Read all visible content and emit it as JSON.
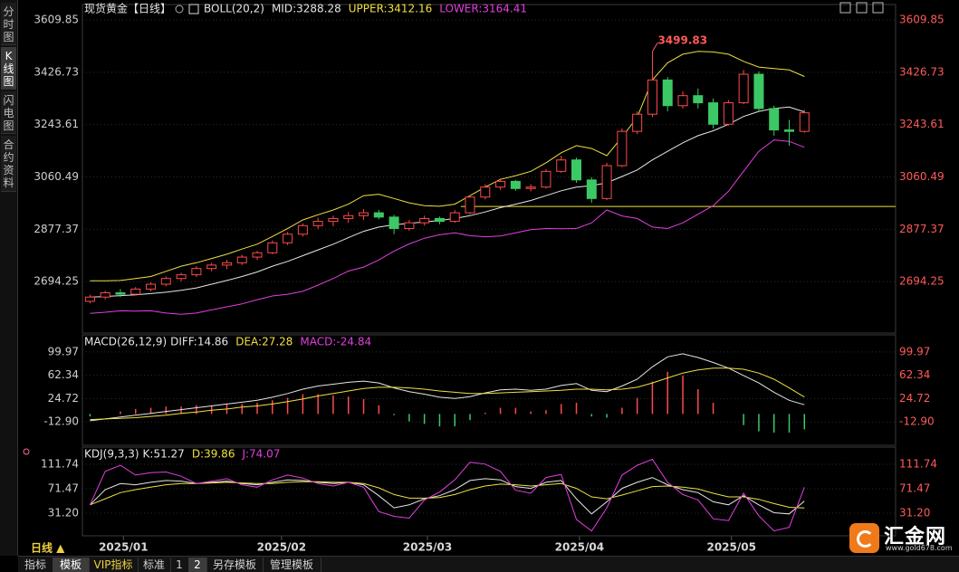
{
  "chart_data": [
    {
      "type": "candlestick",
      "title": "现货黄金【日线】",
      "legend": [
        {
          "text": "BOLL(20,2)",
          "color": "#e6e6e6"
        },
        {
          "text": "MID:3288.28",
          "color": "#e6e6e6"
        },
        {
          "text": "UPPER:3412.16",
          "color": "#f0e040"
        },
        {
          "text": "LOWER:3164.41",
          "color": "#e040e0"
        }
      ],
      "x": [
        0,
        1,
        2,
        3,
        4,
        5,
        6,
        7,
        8,
        9,
        10,
        11,
        12,
        13,
        14,
        15,
        16,
        17,
        18,
        19,
        20,
        21,
        22,
        23,
        24,
        25,
        26,
        27,
        28,
        29,
        30,
        31,
        32,
        33,
        34,
        35,
        36,
        37,
        38,
        39,
        40,
        41,
        42,
        43,
        44,
        45,
        46,
        47
      ],
      "xlim": [
        -0.5,
        53
      ],
      "xticks": [
        {
          "value": 2.2,
          "label": "2025/01"
        },
        {
          "value": 12.6,
          "label": "2025/02"
        },
        {
          "value": 22.2,
          "label": "2025/03"
        },
        {
          "value": 32.2,
          "label": "2025/04"
        },
        {
          "value": 42.2,
          "label": "2025/05"
        }
      ],
      "open": [
        2625,
        2640,
        2655,
        2650,
        2668,
        2685,
        2705,
        2718,
        2740,
        2752,
        2760,
        2780,
        2795,
        2830,
        2860,
        2890,
        2905,
        2915,
        2925,
        2935,
        2920,
        2880,
        2900,
        2915,
        2905,
        2935,
        2990,
        3025,
        3045,
        3020,
        3025,
        3080,
        3120,
        3050,
        2985,
        3100,
        3220,
        3280,
        3400,
        3310,
        3345,
        3320,
        3245,
        3320,
        3420,
        3300,
        3225,
        3220
      ],
      "high": [
        2648,
        2662,
        2668,
        2675,
        2692,
        2712,
        2725,
        2748,
        2760,
        2770,
        2788,
        2802,
        2838,
        2868,
        2898,
        2918,
        2925,
        2938,
        2948,
        2945,
        2928,
        2910,
        2925,
        2922,
        2945,
        2998,
        3035,
        3055,
        3050,
        3035,
        3088,
        3135,
        3128,
        3060,
        3110,
        3230,
        3290,
        3499.83,
        3410,
        3360,
        3370,
        3335,
        3330,
        3435,
        3430,
        3310,
        3260,
        3295
      ],
      "low": [
        2618,
        2632,
        2640,
        2645,
        2660,
        2678,
        2695,
        2710,
        2730,
        2738,
        2752,
        2770,
        2790,
        2822,
        2852,
        2878,
        2888,
        2900,
        2910,
        2912,
        2860,
        2872,
        2890,
        2895,
        2900,
        2930,
        2982,
        3015,
        3012,
        3010,
        3020,
        3075,
        3040,
        2970,
        2980,
        3095,
        3210,
        3270,
        3290,
        3300,
        3300,
        3230,
        3240,
        3315,
        3290,
        3205,
        3170,
        3215
      ],
      "close": [
        2640,
        2655,
        2650,
        2668,
        2685,
        2705,
        2718,
        2740,
        2752,
        2760,
        2780,
        2795,
        2830,
        2860,
        2890,
        2905,
        2915,
        2925,
        2935,
        2920,
        2880,
        2900,
        2915,
        2905,
        2935,
        2990,
        3025,
        3045,
        3020,
        3025,
        3080,
        3120,
        3050,
        2985,
        3100,
        3220,
        3280,
        3400,
        3310,
        3345,
        3320,
        3245,
        3320,
        3420,
        3300,
        3225,
        3220,
        3285
      ],
      "up_color": "#ff4a4a",
      "down_color": "#3cc864",
      "series": [
        {
          "color": "#f0e040",
          "values": [
            2697,
            2697,
            2698,
            2705,
            2712,
            2730,
            2748,
            2760,
            2775,
            2790,
            2808,
            2825,
            2852,
            2880,
            2910,
            2928,
            2945,
            2965,
            2995,
            3000,
            2985,
            2970,
            2960,
            2958,
            2965,
            2995,
            3025,
            3052,
            3065,
            3080,
            3110,
            3145,
            3170,
            3160,
            3135,
            3200,
            3270,
            3400,
            3460,
            3490,
            3500,
            3498,
            3490,
            3465,
            3445,
            3440,
            3435,
            3412.16
          ]
        },
        {
          "color": "#e6e6e6",
          "values": [
            2640,
            2642,
            2645,
            2648,
            2652,
            2657,
            2664,
            2672,
            2685,
            2698,
            2712,
            2728,
            2748,
            2765,
            2785,
            2805,
            2825,
            2848,
            2870,
            2885,
            2893,
            2898,
            2903,
            2908,
            2915,
            2925,
            2938,
            2953,
            2965,
            2978,
            2995,
            3012,
            3025,
            3030,
            3040,
            3062,
            3085,
            3120,
            3150,
            3180,
            3205,
            3222,
            3245,
            3272,
            3290,
            3300,
            3305,
            3288.28
          ]
        },
        {
          "color": "#e040e0",
          "values": [
            2583,
            2587,
            2592,
            2591,
            2592,
            2584,
            2580,
            2584,
            2595,
            2606,
            2616,
            2631,
            2644,
            2650,
            2660,
            2682,
            2705,
            2731,
            2745,
            2770,
            2801,
            2826,
            2846,
            2858,
            2865,
            2855,
            2851,
            2854,
            2865,
            2876,
            2880,
            2879,
            2880,
            2900,
            2945,
            2924,
            2915,
            2885,
            2880,
            2900,
            2930,
            2960,
            3010,
            3080,
            3150,
            3190,
            3185,
            3164.41
          ]
        }
      ],
      "hline": 2957,
      "hline_color": "#f0e040",
      "ylim": [
        2514,
        3664
      ],
      "yticks": [
        3609.85,
        3426.73,
        3243.61,
        3060.49,
        2877.37,
        2694.25
      ],
      "grid": true
    },
    {
      "type": "macd",
      "title": "MACD(26,12,9)",
      "legend": [
        {
          "text": "DIFF:14.86",
          "color": "#e6e6e6"
        },
        {
          "text": "DEA:27.28",
          "color": "#f0e040"
        },
        {
          "text": "MACD:-24.84",
          "color": "#e040e0"
        }
      ],
      "series": [
        {
          "color": "#e6e6e6",
          "values": [
            -11,
            -8,
            -5,
            -2,
            1,
            4,
            7,
            10,
            13,
            16,
            19,
            22,
            27,
            33,
            40,
            45,
            48,
            51,
            53,
            50,
            42,
            36,
            32,
            27,
            25,
            28,
            34,
            39,
            40,
            38,
            40,
            46,
            49,
            38,
            36,
            45,
            56,
            76,
            92,
            97,
            91,
            83,
            74,
            62,
            50,
            35,
            22,
            14.86
          ]
        },
        {
          "color": "#f0e040",
          "values": [
            -9,
            -8,
            -7,
            -6,
            -4,
            -2,
            1,
            3,
            6,
            8,
            11,
            13,
            16,
            20,
            24,
            29,
            33,
            37,
            41,
            43,
            43,
            42,
            40,
            37,
            35,
            33,
            33,
            34,
            35,
            36,
            37,
            38,
            40,
            40,
            39,
            40,
            43,
            50,
            58,
            66,
            71,
            74,
            74,
            72,
            66,
            56,
            42,
            27.28
          ]
        }
      ],
      "bars": {
        "values": [
          -4,
          0,
          4,
          8,
          10,
          12,
          12,
          14,
          14,
          16,
          16,
          18,
          22,
          26,
          32,
          32,
          30,
          28,
          24,
          14,
          -2,
          -12,
          -16,
          -20,
          -20,
          -10,
          2,
          10,
          10,
          4,
          6,
          16,
          18,
          -4,
          -6,
          10,
          26,
          52,
          68,
          62,
          40,
          18,
          0,
          -18,
          -28,
          -30,
          -30,
          -24.84
        ],
        "up_color": "#ff4a4a",
        "down_color": "#3cc864"
      },
      "ylim": [
        -50.5,
        127.5
      ],
      "yticks": [
        99.97,
        62.34,
        24.72,
        {
          "value": -12.9,
          "label": "-12.90"
        }
      ],
      "grid": true
    },
    {
      "type": "line",
      "title": "KDJ(9,3,3)",
      "legend": [
        {
          "text": "K:51.27",
          "color": "#e6e6e6"
        },
        {
          "text": "D:39.86",
          "color": "#f0e040"
        },
        {
          "text": "J:74.07",
          "color": "#e040e0"
        }
      ],
      "series": [
        {
          "color": "#e6e6e6",
          "values": [
            45,
            70,
            80,
            78,
            82,
            85,
            84,
            80,
            82,
            84,
            80,
            78,
            82,
            86,
            85,
            82,
            80,
            82,
            78,
            60,
            40,
            45,
            55,
            60,
            70,
            85,
            88,
            86,
            75,
            72,
            82,
            85,
            55,
            30,
            50,
            72,
            82,
            90,
            78,
            70,
            65,
            50,
            45,
            60,
            45,
            32,
            30,
            51.27
          ]
        },
        {
          "color": "#f0e040",
          "values": [
            45,
            55,
            65,
            70,
            74,
            78,
            80,
            80,
            81,
            82,
            81,
            80,
            80,
            82,
            83,
            83,
            82,
            82,
            80,
            73,
            62,
            56,
            56,
            57,
            62,
            70,
            76,
            79,
            78,
            76,
            78,
            80,
            72,
            58,
            55,
            61,
            68,
            75,
            76,
            74,
            71,
            64,
            58,
            58,
            54,
            47,
            41,
            39.86
          ]
        },
        {
          "color": "#e040e0",
          "values": [
            45,
            100,
            110,
            94,
            98,
            99,
            92,
            80,
            84,
            88,
            78,
            74,
            86,
            94,
            89,
            80,
            76,
            82,
            74,
            34,
            26,
            23,
            53,
            66,
            86,
            115,
            112,
            100,
            69,
            64,
            90,
            95,
            21,
            2,
            40,
            94,
            110,
            120,
            82,
            62,
            53,
            22,
            19,
            64,
            27,
            2,
            8,
            74.07
          ]
        }
      ],
      "ylim": [
        -6,
        140
      ],
      "yticks": [
        111.74,
        71.47,
        {
          "value": 31.2,
          "label": "31.20"
        }
      ],
      "grid": true
    }
  ],
  "ui": {
    "tabs": [
      "分时图",
      "K线图",
      "闪电图",
      "合约资料"
    ],
    "selected_tab": 1,
    "period": "日线 ▲",
    "toolbar": [
      "指标",
      "模板",
      "VIP指标",
      "标准",
      "1",
      "2",
      "另存模板",
      "管理模板"
    ],
    "logo": {
      "name": "汇金网",
      "url": "www.gold678.com"
    }
  }
}
